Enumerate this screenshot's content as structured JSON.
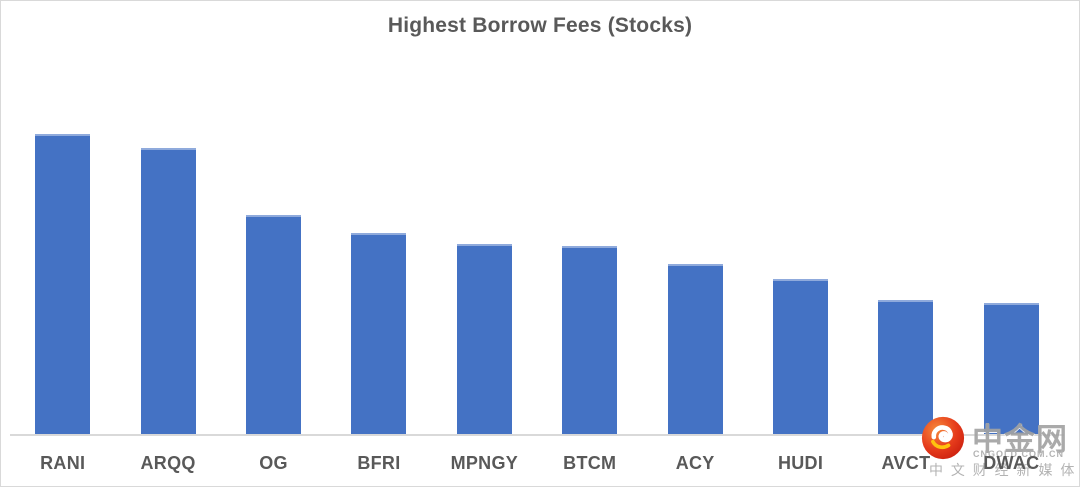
{
  "chart_data": {
    "type": "bar",
    "title": "Highest Borrow Fees (Stocks)",
    "categories": [
      "RANI",
      "ARQQ",
      "OG",
      "BFRI",
      "MPNGY",
      "BTCM",
      "ACY",
      "HUDI",
      "AVCT",
      "DWAC"
    ],
    "values": [
      100,
      95.3,
      73.1,
      67.1,
      63.5,
      62.8,
      56.8,
      51.8,
      44.9,
      43.9
    ],
    "value_scale_note": "no value axis, gridlines or data labels shown; values are relative bar heights with tallest bar = 100",
    "xlabel": "",
    "ylabel": "",
    "ylim": [
      0,
      110
    ],
    "grid": false,
    "legend": false,
    "bar_color": "#4472C4",
    "bar_top_edge_color": "#8FAADC",
    "axis_line_color": "#D9D9D9",
    "label_color": "#595959",
    "title_color": "#595959",
    "background_color": "#FFFFFF"
  },
  "watermark": {
    "logo_icon": "cngold-swirl-logo",
    "site_name": "中金网",
    "site_url": "CNGOLD.COM.CN",
    "tagline": "中 文 财 经 新 媒 体",
    "text_color": "#B3B3B3",
    "logo_colors": {
      "orange_highlight": "#F6893B",
      "red": "#E63C1C",
      "dark_red": "#C61A0C",
      "swirl_white": "#FFFFFF",
      "swirl_yellow": "#FFC20E"
    }
  }
}
